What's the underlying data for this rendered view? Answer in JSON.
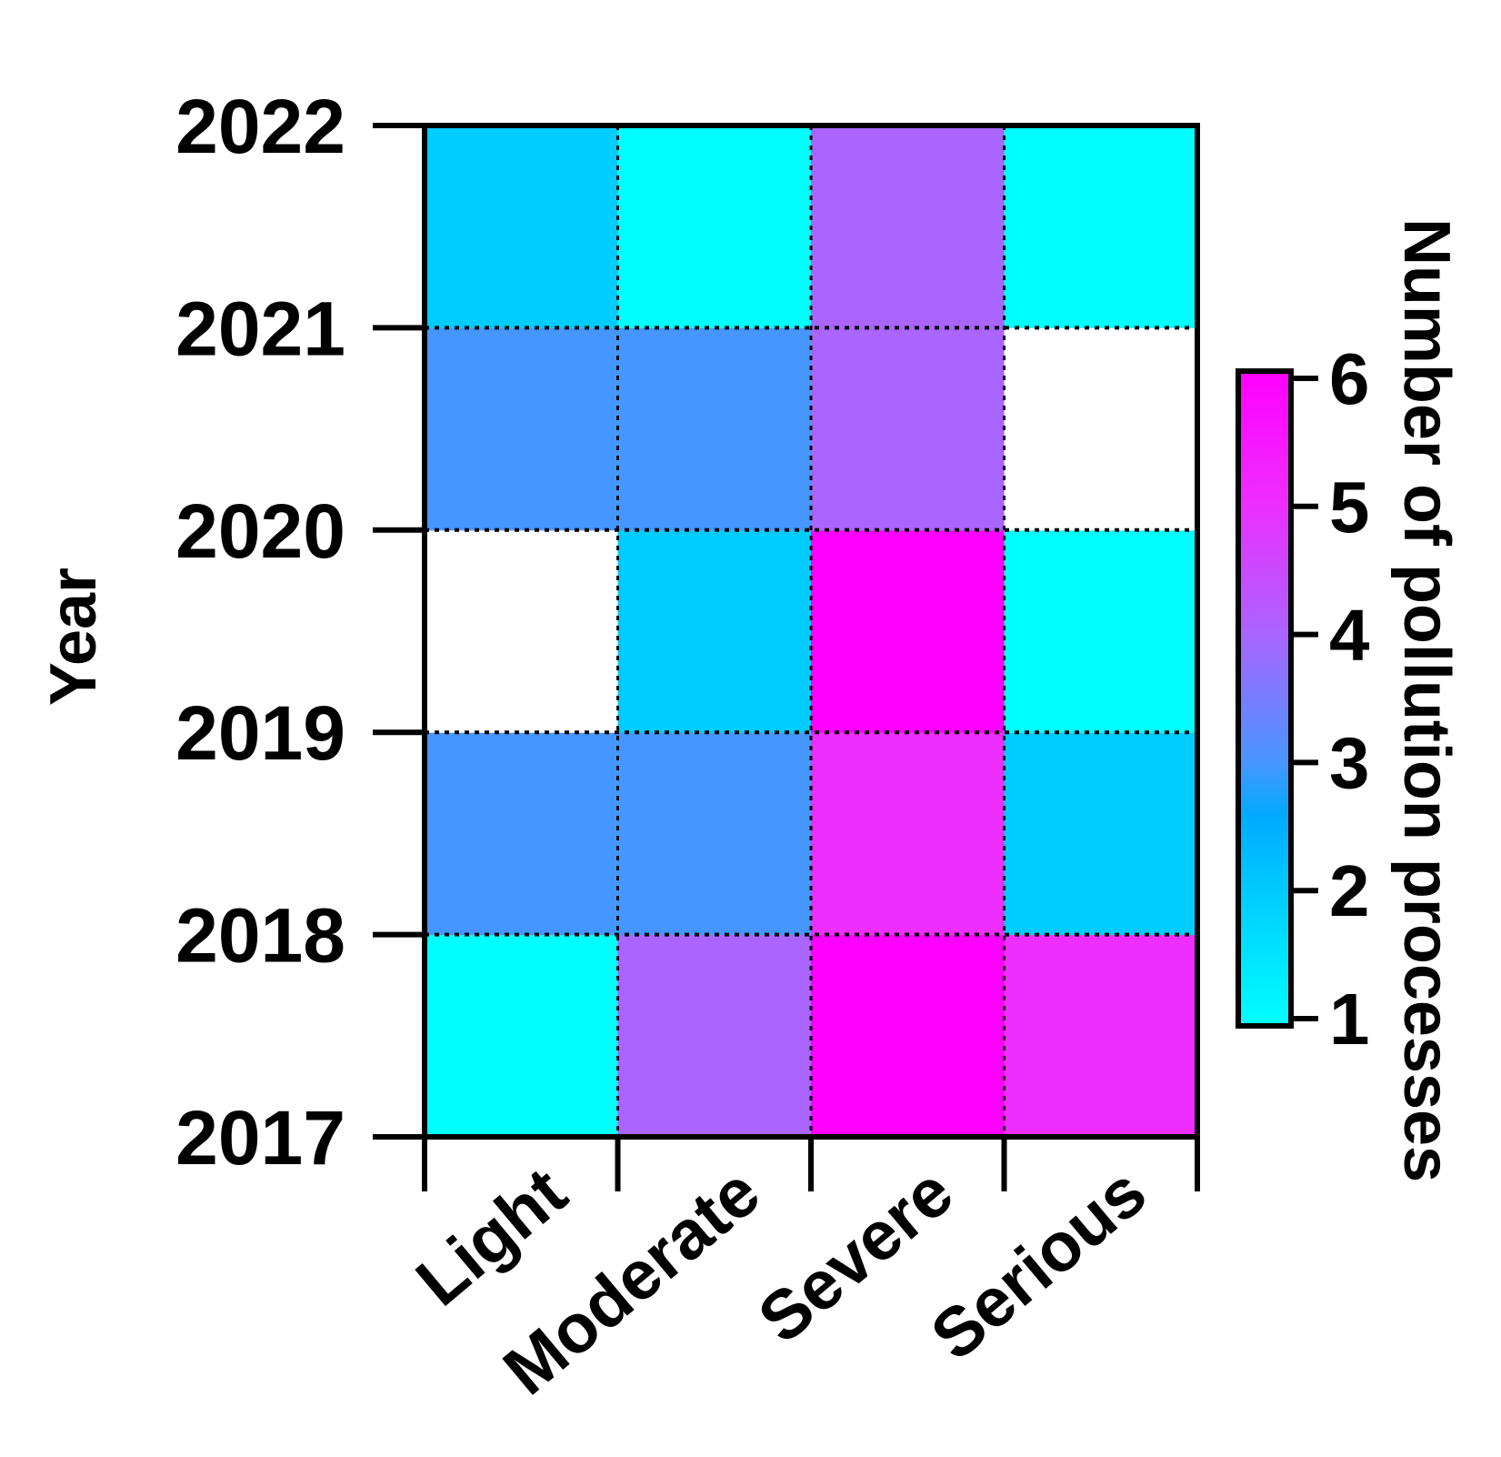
{
  "chart_data": {
    "type": "heatmap",
    "title": "",
    "xlabel": "",
    "ylabel": "Year",
    "x_categories": [
      "Light",
      "Moderate",
      "Severe",
      "Serious"
    ],
    "y_ticks": [
      "2017",
      "2018",
      "2019",
      "2020",
      "2021",
      "2022"
    ],
    "rows": [
      {
        "year_interval": [
          "2017",
          "2018"
        ],
        "values": [
          1,
          4,
          6,
          5
        ]
      },
      {
        "year_interval": [
          "2018",
          "2019"
        ],
        "values": [
          3,
          3,
          5,
          2
        ]
      },
      {
        "year_interval": [
          "2019",
          "2020"
        ],
        "values": [
          null,
          2,
          6,
          1
        ]
      },
      {
        "year_interval": [
          "2020",
          "2021"
        ],
        "values": [
          3,
          3,
          4,
          null
        ]
      },
      {
        "year_interval": [
          "2021",
          "2022"
        ],
        "values": [
          2,
          1,
          4,
          1
        ]
      }
    ],
    "colorbar": {
      "label": "Number of pollution processes",
      "min": 1,
      "max": 6,
      "ticks": [
        "1",
        "2",
        "3",
        "4",
        "5",
        "6"
      ]
    },
    "colors": {
      "1": "#00ffff",
      "2": "#00ccff",
      "3": "#4696ff",
      "4": "#aa64ff",
      "5": "#ee2dff",
      "6": "#ff00ff",
      "empty": "#ffffff"
    },
    "grid": true
  }
}
